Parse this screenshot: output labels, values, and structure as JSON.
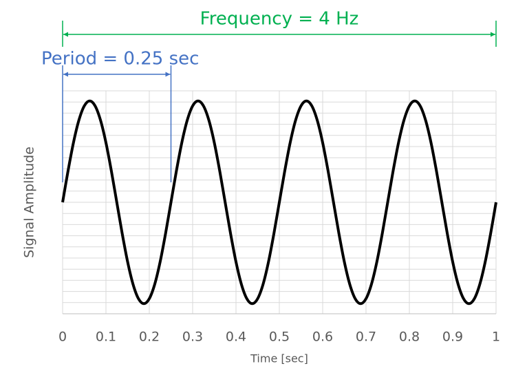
{
  "chart_data": {
    "type": "line",
    "x_label": "Time [sec]",
    "y_label": "Signal Amplitude",
    "x": [
      0,
      0.0125,
      0.025,
      0.0375,
      0.05,
      0.0625,
      0.075,
      0.0875,
      0.1,
      0.1125,
      0.125,
      0.1375,
      0.15,
      0.1625,
      0.175,
      0.1875,
      0.2,
      0.2125,
      0.225,
      0.2375,
      0.25,
      0.2625,
      0.275,
      0.2875,
      0.3,
      0.3125,
      0.325,
      0.3375,
      0.35,
      0.3625,
      0.375,
      0.3875,
      0.4,
      0.4125,
      0.425,
      0.4375,
      0.45,
      0.4625,
      0.475,
      0.4875,
      0.5,
      0.5125,
      0.525,
      0.5375,
      0.55,
      0.5625,
      0.575,
      0.5875,
      0.6,
      0.6125,
      0.625,
      0.6375,
      0.65,
      0.6625,
      0.675,
      0.6875,
      0.7,
      0.7125,
      0.725,
      0.7375,
      0.75,
      0.7625,
      0.775,
      0.7875,
      0.8,
      0.8125,
      0.825,
      0.8375,
      0.85,
      0.8625,
      0.875,
      0.8875,
      0.9,
      0.9125,
      0.925,
      0.9375,
      0.95,
      0.9625,
      0.975,
      0.9875,
      1
    ],
    "series": [
      {
        "color": "#000000",
        "values": [
          0,
          0.309,
          0.588,
          0.809,
          0.951,
          1,
          0.951,
          0.809,
          0.588,
          0.309,
          0,
          -0.309,
          -0.588,
          -0.809,
          -0.951,
          -1,
          -0.951,
          -0.809,
          -0.588,
          -0.309,
          0,
          0.309,
          0.588,
          0.809,
          0.951,
          1,
          0.951,
          0.809,
          0.588,
          0.309,
          0,
          -0.309,
          -0.588,
          -0.809,
          -0.951,
          -1,
          -0.951,
          -0.809,
          -0.588,
          -0.309,
          0,
          0.309,
          0.588,
          0.809,
          0.951,
          1,
          0.951,
          0.809,
          0.588,
          0.309,
          0,
          -0.309,
          -0.588,
          -0.809,
          -0.951,
          -1,
          -0.951,
          -0.809,
          -0.588,
          -0.309,
          0,
          0.309,
          0.588,
          0.809,
          0.951,
          1,
          0.951,
          0.809,
          0.588,
          0.309,
          0,
          -0.309,
          -0.588,
          -0.809,
          -0.951,
          -1,
          -0.951,
          -0.809,
          -0.588,
          -0.309,
          0
        ]
      }
    ],
    "xlim": [
      0,
      1
    ],
    "xticks": [
      0,
      0.1,
      0.2,
      0.3,
      0.4,
      0.5,
      0.6,
      0.7,
      0.8,
      0.9,
      1
    ],
    "ylim": [
      -1.1,
      1.1
    ],
    "grid": true,
    "annotations": [
      {
        "text": "Frequency = 4 Hz",
        "color": "#00b050",
        "x_range": [
          0,
          1
        ]
      },
      {
        "text": "Period = 0.25 sec",
        "color": "#4472c4",
        "x_range": [
          0,
          0.25
        ]
      }
    ]
  }
}
